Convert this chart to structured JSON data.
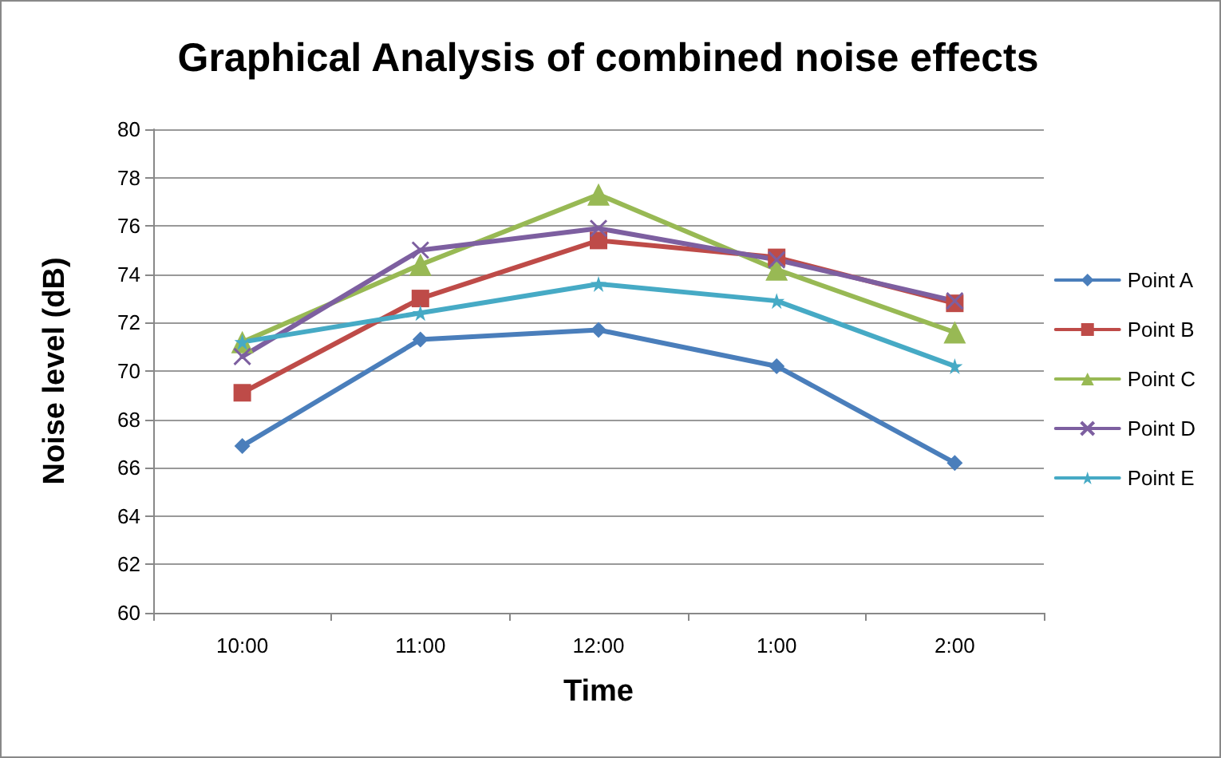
{
  "chart_data": {
    "type": "line",
    "title": "Graphical Analysis of combined noise effects",
    "xlabel": "Time",
    "ylabel": "Noise level (dB)",
    "categories": [
      "10:00",
      "11:00",
      "12:00",
      "1:00",
      "2:00"
    ],
    "series": [
      {
        "name": "Point A",
        "color": "#4a7ebb",
        "marker": "diamond",
        "values": [
          66.9,
          71.3,
          71.7,
          70.2,
          66.2
        ]
      },
      {
        "name": "Point B",
        "color": "#be4b48",
        "marker": "square",
        "values": [
          69.1,
          73.0,
          75.4,
          74.7,
          72.8
        ]
      },
      {
        "name": "Point C",
        "color": "#98b954",
        "marker": "triangle",
        "values": [
          71.2,
          74.4,
          77.3,
          74.2,
          71.6
        ]
      },
      {
        "name": "Point D",
        "color": "#7d5fa0",
        "marker": "cross",
        "values": [
          70.6,
          75.0,
          75.9,
          74.6,
          72.9
        ]
      },
      {
        "name": "Point E",
        "color": "#46aac5",
        "marker": "star",
        "values": [
          71.2,
          72.4,
          73.6,
          72.9,
          70.2
        ]
      }
    ],
    "ylim": [
      60,
      80
    ],
    "yticks": [
      60,
      62,
      64,
      66,
      68,
      70,
      72,
      74,
      76,
      78,
      80
    ],
    "grid": "y",
    "legend": "right"
  }
}
